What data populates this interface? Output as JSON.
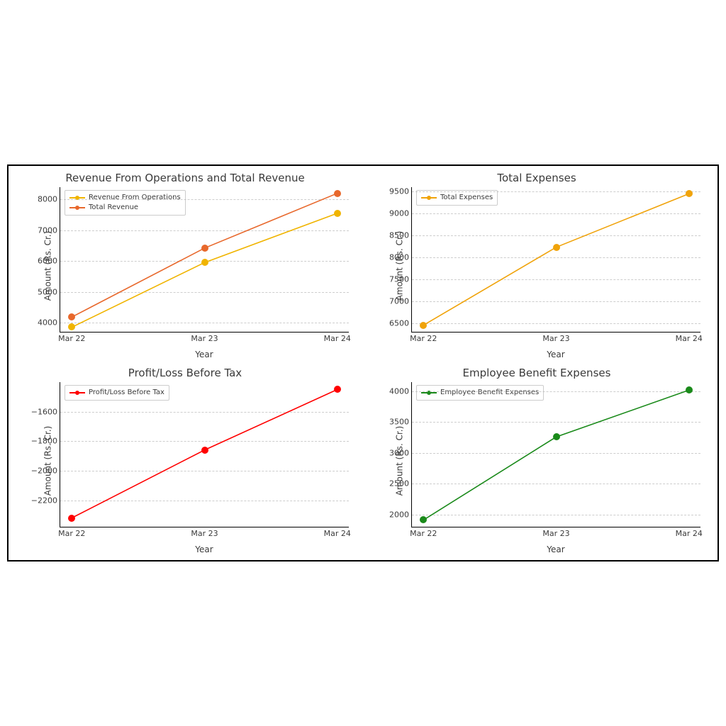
{
  "figure": {
    "background_color": "#ffffff",
    "border_color": "#000000",
    "grid_color": "#b8b8b8",
    "text_color": "#3a3a3a",
    "title_fontsize": 15,
    "label_fontsize": 12,
    "tick_fontsize": 11,
    "legend_fontsize": 10,
    "marker_size": 5,
    "line_width": 1.6,
    "layout": "2x2"
  },
  "x_categories": [
    "Mar 22",
    "Mar 23",
    "Mar 24"
  ],
  "x_label": "Year",
  "y_label": "Amount (Rs. Cr.)",
  "panels": {
    "revenue": {
      "type": "line",
      "title": "Revenue From Operations and Total Revenue",
      "ylim": [
        3700,
        8400
      ],
      "yticks": [
        4000,
        5000,
        6000,
        7000,
        8000
      ],
      "legend_pos": "top-left",
      "series": [
        {
          "name": "Revenue From Operations",
          "color": "#f0b400",
          "values": [
            3850,
            5950,
            7550
          ]
        },
        {
          "name": "Total Revenue",
          "color": "#e8682c",
          "values": [
            4180,
            6420,
            8200
          ]
        }
      ]
    },
    "expenses": {
      "type": "line",
      "title": "Total Expenses",
      "ylim": [
        6300,
        9600
      ],
      "yticks": [
        6500,
        7000,
        7500,
        8000,
        8500,
        9000,
        9500
      ],
      "legend_pos": "top-left",
      "series": [
        {
          "name": "Total Expenses",
          "color": "#f0a30a",
          "values": [
            6450,
            8230,
            9450
          ]
        }
      ]
    },
    "pbt": {
      "type": "line",
      "title": "Profit/Loss Before Tax",
      "ylim": [
        -2380,
        -1400
      ],
      "yticks": [
        -2200,
        -2000,
        -1800,
        -1600
      ],
      "ytick_labels": [
        "−2200",
        "−2000",
        "−1800",
        "−1600"
      ],
      "legend_pos": "top-left",
      "series": [
        {
          "name": "Profit/Loss Before Tax",
          "color": "#ff0000",
          "values": [
            -2320,
            -1860,
            -1450
          ]
        }
      ]
    },
    "empben": {
      "type": "line",
      "title": "Employee Benefit Expenses",
      "ylim": [
        1800,
        4150
      ],
      "yticks": [
        2000,
        2500,
        3000,
        3500,
        4000
      ],
      "legend_pos": "top-left",
      "series": [
        {
          "name": "Employee Benefit Expenses",
          "color": "#1a8a1a",
          "values": [
            1910,
            3260,
            4020
          ]
        }
      ]
    }
  }
}
